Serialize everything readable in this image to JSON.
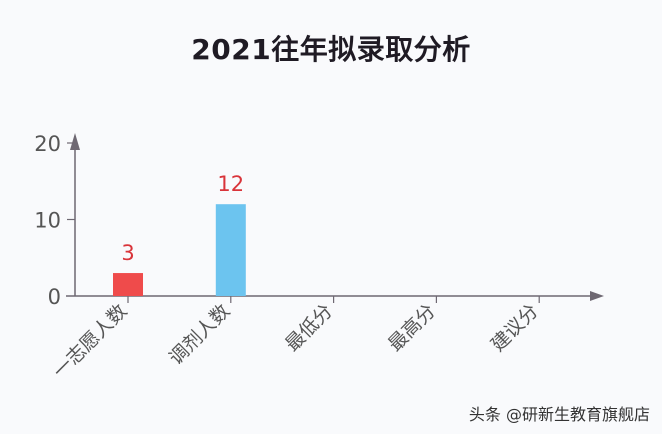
{
  "title": "2021往年拟录取分析",
  "watermark": "头条 @研新生教育旗舰店",
  "colors": {
    "axis": "#6e6872",
    "bar_first": "#ef4b4b",
    "bar_adjust": "#6cc4ef",
    "label": "#d9343a",
    "tick_text": "#555"
  },
  "chart_data": {
    "type": "bar",
    "title": "2021往年拟录取分析",
    "categories": [
      "一志愿人数",
      "调剂人数",
      "最低分",
      "最高分",
      "建议分"
    ],
    "values": [
      3,
      12,
      null,
      null,
      null
    ],
    "data_labels": [
      "3",
      "12",
      "",
      "",
      ""
    ],
    "yticks": [
      0,
      10,
      20
    ],
    "ylim": [
      0,
      20
    ],
    "xlabel": "",
    "ylabel": "",
    "grid": false,
    "legend": null
  }
}
